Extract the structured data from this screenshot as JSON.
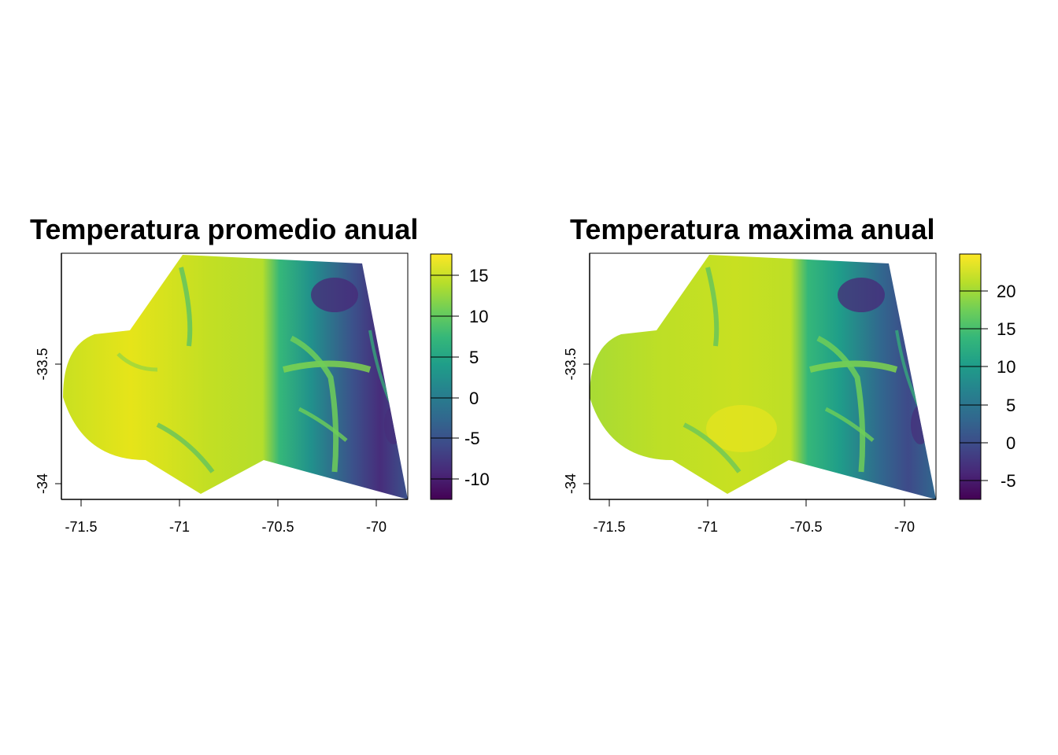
{
  "maps": [
    {
      "title": "Temperatura promedio anual",
      "x_ticks": [
        "-71.5",
        "-71",
        "-70.5",
        "-70"
      ],
      "x_tick_values": [
        -71.5,
        -71,
        -70.5,
        -70
      ],
      "y_ticks": [
        "-33.5",
        "-34"
      ],
      "y_tick_values": [
        -33.5,
        -34
      ],
      "xlim": [
        -71.6,
        -69.85
      ],
      "ylim": [
        -34.08,
        -33.09
      ],
      "legend": {
        "labels": [
          "15",
          "10",
          "5",
          "0",
          "-5",
          "-10"
        ],
        "values": [
          15,
          10,
          5,
          0,
          -5,
          -10
        ],
        "range": [
          -12.5,
          17.5
        ],
        "palette": "viridis"
      }
    },
    {
      "title": "Temperatura maxima anual",
      "x_ticks": [
        "-71.5",
        "-71",
        "-70.5",
        "-70"
      ],
      "x_tick_values": [
        -71.5,
        -71,
        -70.5,
        -70
      ],
      "y_ticks": [
        "-33.5",
        "-34"
      ],
      "y_tick_values": [
        -33.5,
        -34
      ],
      "xlim": [
        -71.6,
        -69.85
      ],
      "ylim": [
        -34.08,
        -33.09
      ],
      "legend": {
        "labels": [
          "20",
          "15",
          "10",
          "5",
          "0",
          "-5"
        ],
        "values": [
          20,
          15,
          10,
          5,
          0,
          -5
        ],
        "range": [
          -7.5,
          24.5
        ],
        "palette": "viridis"
      }
    }
  ],
  "colors": {
    "viridis": [
      "#440154",
      "#482878",
      "#3e4a89",
      "#31688e",
      "#26828e",
      "#1f9e89",
      "#35b779",
      "#6ece58",
      "#b5de2b",
      "#fde725"
    ]
  }
}
